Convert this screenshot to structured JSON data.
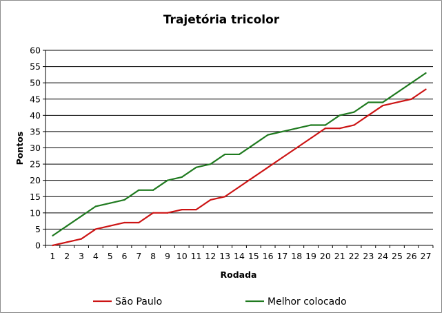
{
  "chart_data": {
    "type": "line",
    "title": "Trajetória tricolor",
    "xlabel": "Rodada",
    "ylabel": "Pontos",
    "x": [
      1,
      2,
      3,
      4,
      5,
      6,
      7,
      8,
      9,
      10,
      11,
      12,
      13,
      14,
      15,
      16,
      17,
      18,
      19,
      20,
      21,
      22,
      23,
      24,
      25,
      26,
      27
    ],
    "ylim": [
      0,
      60
    ],
    "yticks": [
      0,
      5,
      10,
      15,
      20,
      25,
      30,
      35,
      40,
      45,
      50,
      55,
      60
    ],
    "grid": true,
    "legend_position": "bottom",
    "series": [
      {
        "name": "São Paulo",
        "color": "#cc1414",
        "values": [
          0,
          1,
          2,
          5,
          6,
          7,
          7,
          10,
          10,
          11,
          11,
          14,
          15,
          18,
          21,
          24,
          27,
          30,
          33,
          36,
          36,
          37,
          40,
          43,
          44,
          45,
          48
        ]
      },
      {
        "name": "Melhor colocado",
        "color": "#1f7a1f",
        "values": [
          3,
          6,
          9,
          12,
          13,
          14,
          17,
          17,
          20,
          21,
          24,
          25,
          28,
          28,
          31,
          34,
          35,
          36,
          37,
          37,
          40,
          41,
          44,
          44,
          47,
          50,
          53
        ]
      }
    ]
  }
}
